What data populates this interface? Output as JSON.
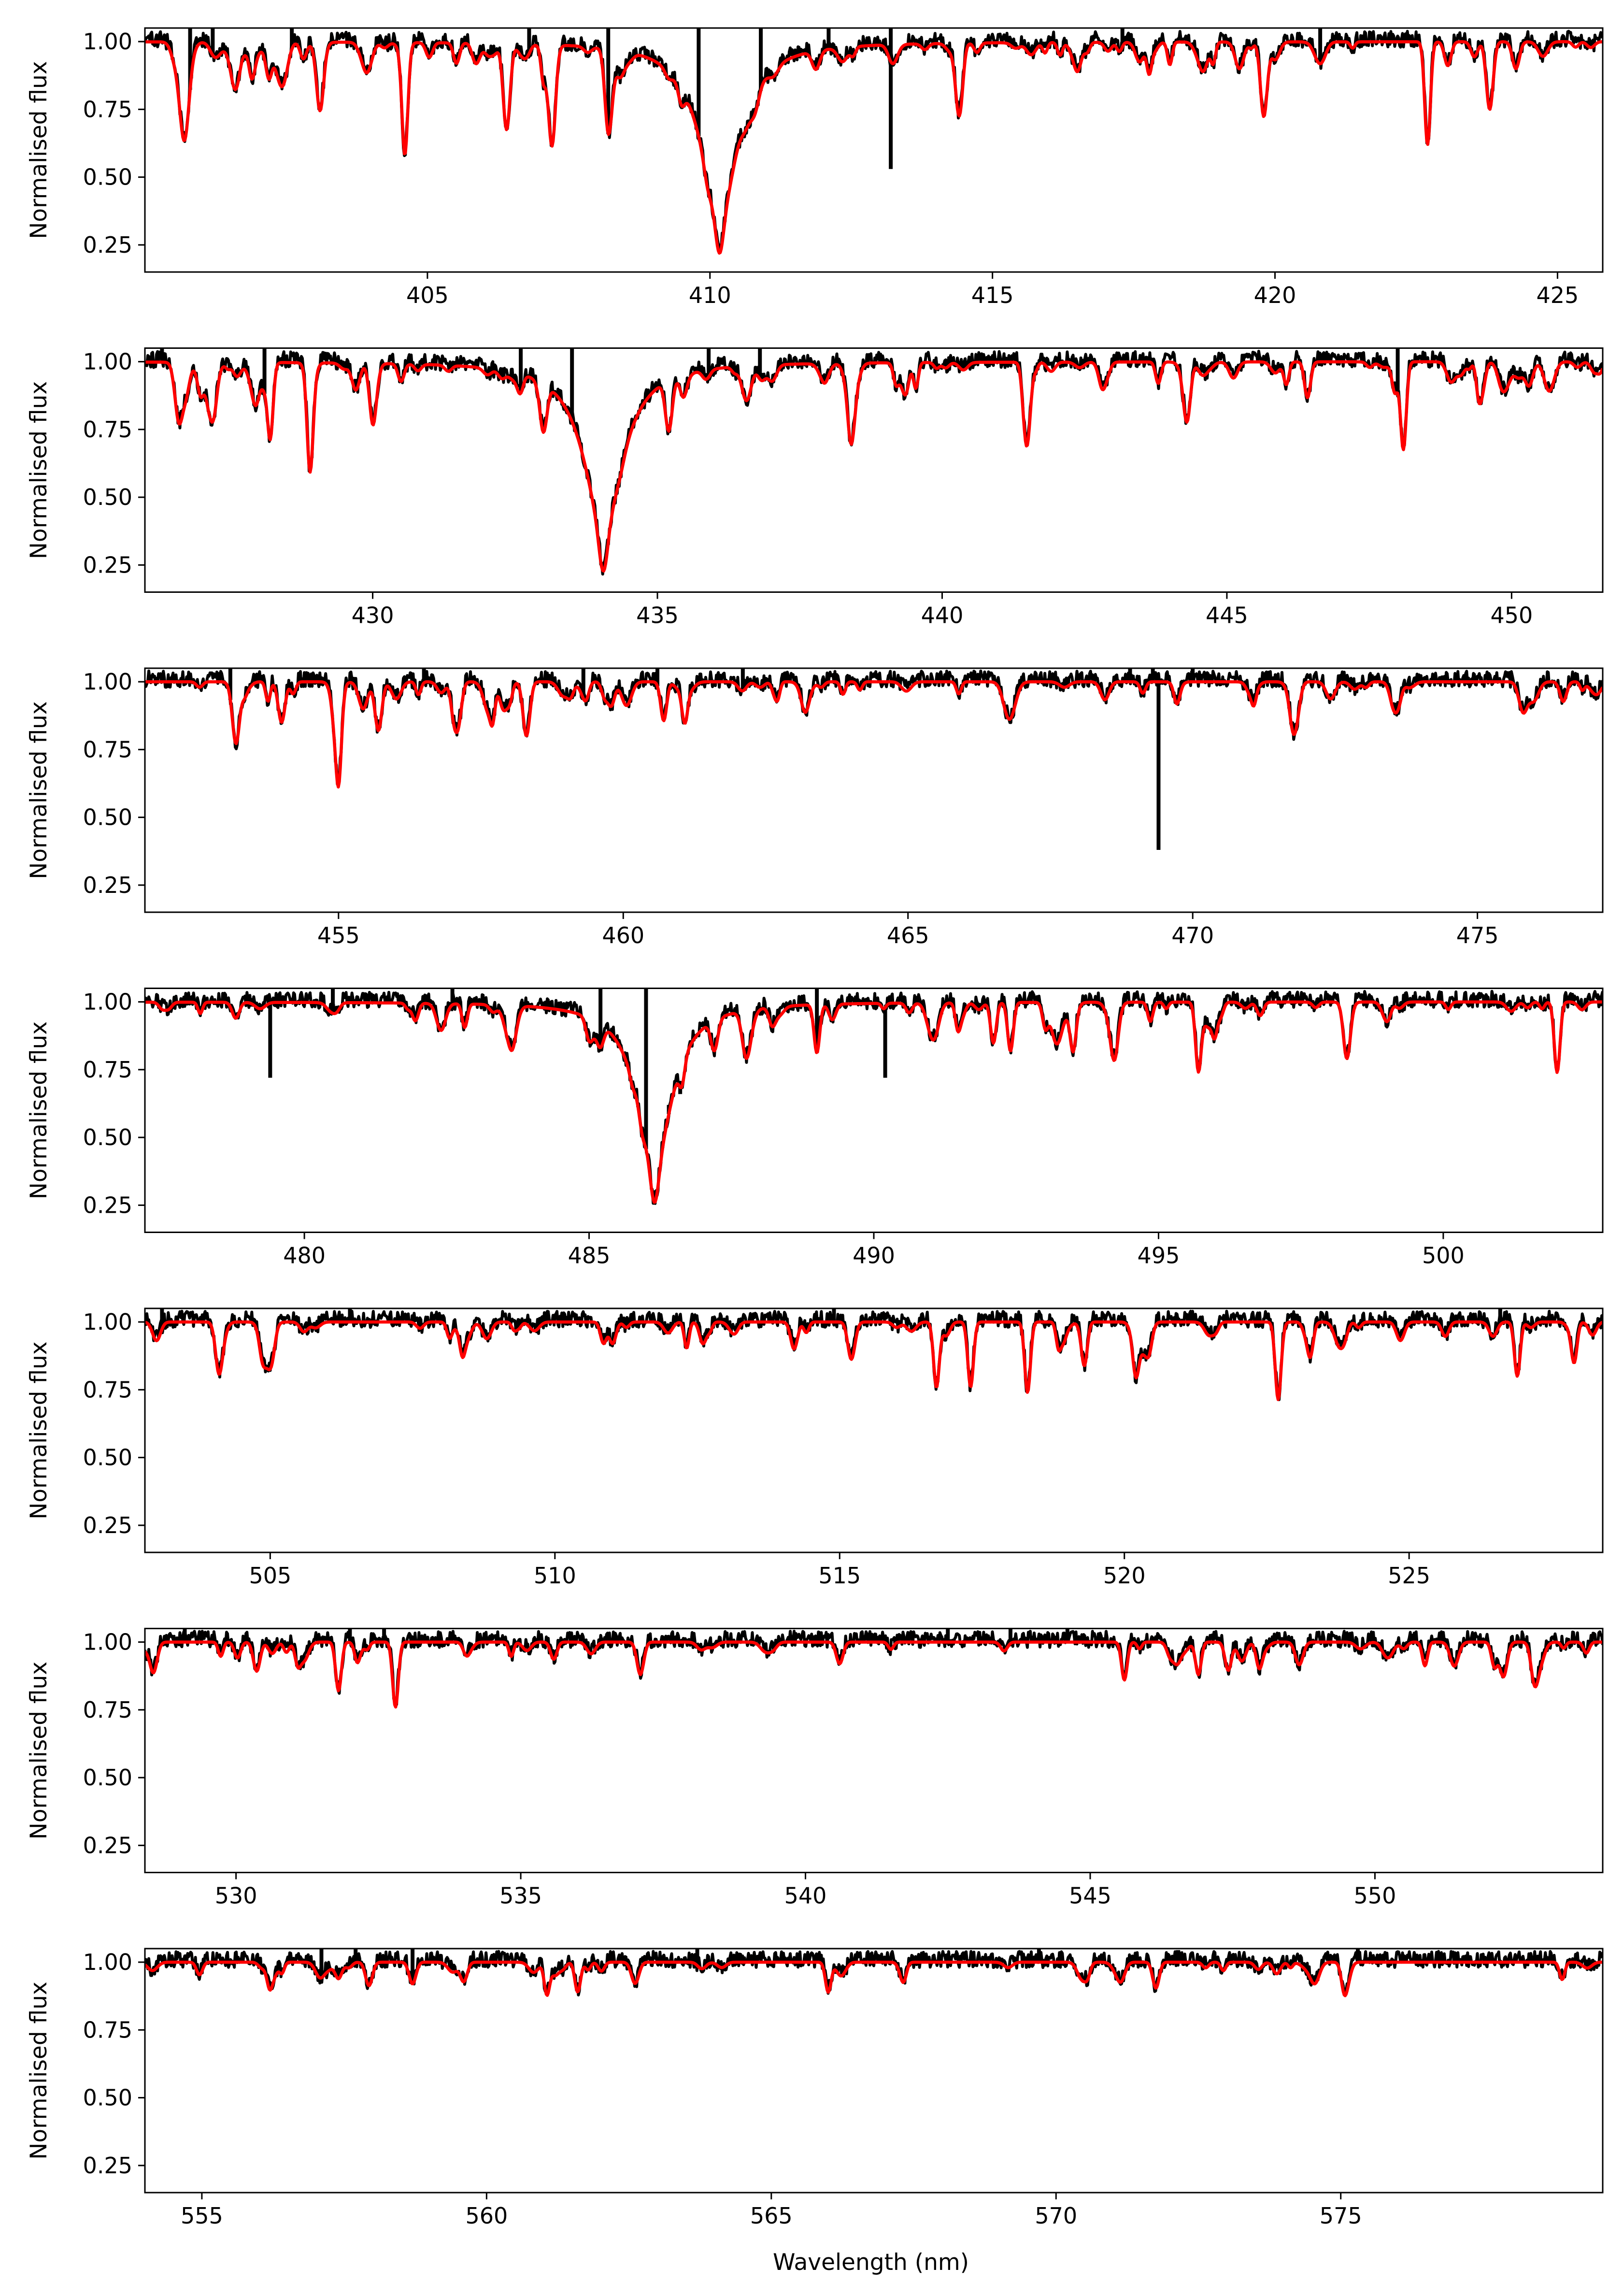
{
  "figure": {
    "xlabel": "Wavelength (nm)",
    "ylabel": "Normalised flux",
    "colors": {
      "observed": "#000000",
      "model": "#ff0000"
    }
  },
  "chart_data": [
    {
      "type": "line",
      "panel": 1,
      "xlim": [
        400.0,
        425.8
      ],
      "ylim": [
        0.15,
        1.05
      ],
      "xticks": [
        405,
        410,
        415,
        420,
        425
      ],
      "yticks": [
        0.25,
        0.5,
        0.75,
        1.0
      ],
      "ylabel": "Normalised flux",
      "xlabel": "",
      "lines": [
        {
          "center": 410.17,
          "depth": 0.78,
          "width": 1.2,
          "core": 0.07
        },
        {
          "center": 400.7,
          "depth": 0.3,
          "width": 0.08
        },
        {
          "center": 401.6,
          "depth": 0.15,
          "width": 0.08
        },
        {
          "center": 403.1,
          "depth": 0.22,
          "width": 0.06
        },
        {
          "center": 404.6,
          "depth": 0.38,
          "width": 0.05
        },
        {
          "center": 406.4,
          "depth": 0.3,
          "width": 0.06
        },
        {
          "center": 407.2,
          "depth": 0.22,
          "width": 0.06
        },
        {
          "center": 408.2,
          "depth": 0.25,
          "width": 0.06
        },
        {
          "center": 414.4,
          "depth": 0.22,
          "width": 0.06
        },
        {
          "center": 419.8,
          "depth": 0.22,
          "width": 0.06
        },
        {
          "center": 422.7,
          "depth": 0.38,
          "width": 0.05
        },
        {
          "center": 423.8,
          "depth": 0.25,
          "width": 0.06
        }
      ],
      "line_count": 90,
      "seed": 11,
      "spikes": [
        {
          "x": 400.8,
          "y": 1.05
        },
        {
          "x": 401.2,
          "y": 1.05
        },
        {
          "x": 402.6,
          "y": 1.05
        },
        {
          "x": 406.8,
          "y": 1.05
        },
        {
          "x": 408.2,
          "y": 1.05
        },
        {
          "x": 409.8,
          "y": 1.05
        },
        {
          "x": 410.9,
          "y": 1.05
        },
        {
          "x": 412.1,
          "y": 1.05
        },
        {
          "x": 413.2,
          "y": 1.05
        },
        {
          "x": 413.2,
          "y": 0.53
        },
        {
          "x": 417.3,
          "y": 1.05
        },
        {
          "x": 420.8,
          "y": 1.05
        }
      ]
    },
    {
      "type": "line",
      "panel": 2,
      "xlim": [
        426.0,
        451.6
      ],
      "ylim": [
        0.15,
        1.05
      ],
      "xticks": [
        430,
        435,
        440,
        445,
        450
      ],
      "yticks": [
        0.25,
        0.5,
        0.75,
        1.0
      ],
      "ylabel": "Normalised flux",
      "xlabel": "",
      "lines": [
        {
          "center": 434.05,
          "depth": 0.76,
          "width": 1.2,
          "core": 0.07
        },
        {
          "center": 426.6,
          "depth": 0.22,
          "width": 0.07
        },
        {
          "center": 427.2,
          "depth": 0.18,
          "width": 0.06
        },
        {
          "center": 428.2,
          "depth": 0.28,
          "width": 0.05
        },
        {
          "center": 428.9,
          "depth": 0.35,
          "width": 0.05
        },
        {
          "center": 430.0,
          "depth": 0.2,
          "width": 0.06
        },
        {
          "center": 433.0,
          "depth": 0.18,
          "width": 0.06
        },
        {
          "center": 435.2,
          "depth": 0.2,
          "width": 0.06
        },
        {
          "center": 438.4,
          "depth": 0.25,
          "width": 0.06
        },
        {
          "center": 441.5,
          "depth": 0.2,
          "width": 0.06
        },
        {
          "center": 444.3,
          "depth": 0.2,
          "width": 0.06
        },
        {
          "center": 448.1,
          "depth": 0.32,
          "width": 0.05
        }
      ],
      "line_count": 90,
      "seed": 23,
      "spikes": [
        {
          "x": 426.3,
          "y": 1.05
        },
        {
          "x": 428.1,
          "y": 1.05
        },
        {
          "x": 432.6,
          "y": 1.05
        },
        {
          "x": 433.5,
          "y": 1.05
        },
        {
          "x": 435.9,
          "y": 1.05
        },
        {
          "x": 436.8,
          "y": 1.05
        },
        {
          "x": 448.0,
          "y": 1.05
        }
      ]
    },
    {
      "type": "line",
      "panel": 3,
      "xlim": [
        451.6,
        477.2
      ],
      "ylim": [
        0.15,
        1.05
      ],
      "xticks": [
        455,
        460,
        465,
        470,
        475
      ],
      "yticks": [
        0.25,
        0.5,
        0.75,
        1.0
      ],
      "ylabel": "Normalised flux",
      "xlabel": "",
      "lines": [
        {
          "center": 453.2,
          "depth": 0.2,
          "width": 0.06
        },
        {
          "center": 454.0,
          "depth": 0.15,
          "width": 0.06
        },
        {
          "center": 455.0,
          "depth": 0.33,
          "width": 0.05
        },
        {
          "center": 455.7,
          "depth": 0.18,
          "width": 0.06
        },
        {
          "center": 457.1,
          "depth": 0.15,
          "width": 0.06
        },
        {
          "center": 458.3,
          "depth": 0.2,
          "width": 0.06
        },
        {
          "center": 466.8,
          "depth": 0.1,
          "width": 0.1
        }
      ],
      "line_count": 70,
      "seed": 37,
      "spikes": [
        {
          "x": 453.1,
          "y": 1.05
        },
        {
          "x": 456.5,
          "y": 1.05
        },
        {
          "x": 459.3,
          "y": 1.05
        },
        {
          "x": 460.6,
          "y": 1.05
        },
        {
          "x": 462.1,
          "y": 1.05
        },
        {
          "x": 468.9,
          "y": 1.05
        },
        {
          "x": 469.3,
          "y": 1.05
        },
        {
          "x": 469.4,
          "y": 0.38
        },
        {
          "x": 470.0,
          "y": 1.05
        }
      ]
    },
    {
      "type": "line",
      "panel": 4,
      "xlim": [
        477.2,
        502.8
      ],
      "ylim": [
        0.15,
        1.05
      ],
      "xticks": [
        480,
        485,
        490,
        495,
        500
      ],
      "yticks": [
        0.25,
        0.5,
        0.75,
        1.0
      ],
      "ylabel": "Normalised flux",
      "xlabel": "",
      "lines": [
        {
          "center": 486.15,
          "depth": 0.74,
          "width": 1.1,
          "core": 0.07
        },
        {
          "center": 482.4,
          "depth": 0.1,
          "width": 0.08
        },
        {
          "center": 485.2,
          "depth": 0.08,
          "width": 0.06
        },
        {
          "center": 487.2,
          "depth": 0.12,
          "width": 0.06
        },
        {
          "center": 489.0,
          "depth": 0.18,
          "width": 0.05
        },
        {
          "center": 492.1,
          "depth": 0.15,
          "width": 0.05
        },
        {
          "center": 492.4,
          "depth": 0.18,
          "width": 0.05
        },
        {
          "center": 493.5,
          "depth": 0.15,
          "width": 0.05
        },
        {
          "center": 495.7,
          "depth": 0.25,
          "width": 0.05
        },
        {
          "center": 498.3,
          "depth": 0.12,
          "width": 0.06
        },
        {
          "center": 502.0,
          "depth": 0.26,
          "width": 0.05
        }
      ],
      "line_count": 60,
      "seed": 41,
      "spikes": [
        {
          "x": 479.4,
          "y": 0.72
        },
        {
          "x": 480.5,
          "y": 1.05
        },
        {
          "x": 482.6,
          "y": 1.05
        },
        {
          "x": 485.2,
          "y": 1.05
        },
        {
          "x": 486.0,
          "y": 1.05
        },
        {
          "x": 486.4,
          "y": 0.62
        },
        {
          "x": 486.6,
          "y": 0.66
        },
        {
          "x": 489.0,
          "y": 1.05
        },
        {
          "x": 490.2,
          "y": 0.72
        }
      ]
    },
    {
      "type": "line",
      "panel": 5,
      "xlim": [
        502.8,
        528.4
      ],
      "ylim": [
        0.15,
        1.05
      ],
      "xticks": [
        505,
        510,
        515,
        520,
        525
      ],
      "yticks": [
        0.25,
        0.5,
        0.75,
        1.0
      ],
      "ylabel": "Normalised flux",
      "xlabel": "",
      "lines": [
        {
          "center": 504.1,
          "depth": 0.18,
          "width": 0.06
        },
        {
          "center": 505.0,
          "depth": 0.1,
          "width": 0.06
        },
        {
          "center": 512.6,
          "depth": 0.08,
          "width": 0.06
        },
        {
          "center": 514.2,
          "depth": 0.1,
          "width": 0.06
        },
        {
          "center": 515.2,
          "depth": 0.12,
          "width": 0.06
        },
        {
          "center": 516.7,
          "depth": 0.24,
          "width": 0.05
        },
        {
          "center": 517.3,
          "depth": 0.24,
          "width": 0.05
        },
        {
          "center": 518.3,
          "depth": 0.26,
          "width": 0.05
        },
        {
          "center": 519.3,
          "depth": 0.14,
          "width": 0.05
        },
        {
          "center": 520.2,
          "depth": 0.12,
          "width": 0.05
        },
        {
          "center": 522.7,
          "depth": 0.27,
          "width": 0.05
        },
        {
          "center": 526.9,
          "depth": 0.2,
          "width": 0.05
        },
        {
          "center": 527.9,
          "depth": 0.14,
          "width": 0.05
        }
      ],
      "line_count": 55,
      "seed": 53,
      "spikes": [
        {
          "x": 503.1,
          "y": 1.05
        },
        {
          "x": 506.4,
          "y": 1.05
        },
        {
          "x": 514.9,
          "y": 1.05
        },
        {
          "x": 526.6,
          "y": 1.05
        }
      ]
    },
    {
      "type": "line",
      "panel": 6,
      "xlim": [
        528.4,
        554.0
      ],
      "ylim": [
        0.15,
        1.05
      ],
      "xticks": [
        530,
        535,
        540,
        545,
        550
      ],
      "yticks": [
        0.25,
        0.5,
        0.75,
        1.0
      ],
      "ylabel": "Normalised flux",
      "xlabel": "",
      "lines": [
        {
          "center": 531.8,
          "depth": 0.18,
          "width": 0.05
        },
        {
          "center": 532.8,
          "depth": 0.24,
          "width": 0.05
        },
        {
          "center": 537.1,
          "depth": 0.12,
          "width": 0.06
        },
        {
          "center": 540.6,
          "depth": 0.08,
          "width": 0.06
        },
        {
          "center": 545.6,
          "depth": 0.14,
          "width": 0.05
        },
        {
          "center": 546.9,
          "depth": 0.12,
          "width": 0.05
        },
        {
          "center": 552.8,
          "depth": 0.12,
          "width": 0.06
        }
      ],
      "line_count": 50,
      "seed": 67,
      "spikes": [
        {
          "x": 529.1,
          "y": 1.05
        },
        {
          "x": 532.0,
          "y": 1.05
        },
        {
          "x": 532.6,
          "y": 1.05
        },
        {
          "x": 542.5,
          "y": 1.05
        },
        {
          "x": 543.6,
          "y": 1.05
        },
        {
          "x": 544.6,
          "y": 1.05
        }
      ]
    },
    {
      "type": "line",
      "panel": 7,
      "xlim": [
        554.0,
        579.6
      ],
      "ylim": [
        0.15,
        1.05
      ],
      "xticks": [
        555,
        560,
        565,
        570,
        575
      ],
      "yticks": [
        0.25,
        0.5,
        0.75,
        1.0
      ],
      "ylabel": "Normalised flux",
      "xlabel": "Wavelength (nm)",
      "lines": [
        {
          "center": 557.4,
          "depth": 0.06,
          "width": 0.06
        },
        {
          "center": 558.7,
          "depth": 0.08,
          "width": 0.06
        },
        {
          "center": 559.6,
          "depth": 0.07,
          "width": 0.06
        },
        {
          "center": 561.6,
          "depth": 0.11,
          "width": 0.05
        },
        {
          "center": 566.0,
          "depth": 0.11,
          "width": 0.05
        },
        {
          "center": 567.3,
          "depth": 0.05,
          "width": 0.06
        }
      ],
      "line_count": 40,
      "seed": 79,
      "spikes": [
        {
          "x": 557.1,
          "y": 1.05
        },
        {
          "x": 557.7,
          "y": 1.05
        },
        {
          "x": 558.7,
          "y": 1.05
        },
        {
          "x": 563.7,
          "y": 1.05
        },
        {
          "x": 569.7,
          "y": 1.05
        },
        {
          "x": 575.3,
          "y": 1.05
        }
      ]
    }
  ]
}
